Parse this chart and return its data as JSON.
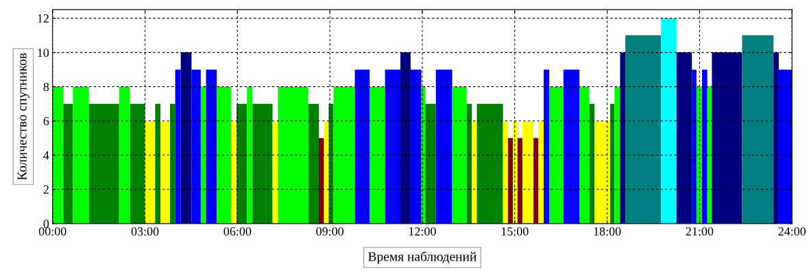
{
  "chart_data": {
    "type": "histogram",
    "xlabel": "Время наблюдений",
    "ylabel": "Количество спутников",
    "bins": [
      0,
      0.35,
      0.66,
      1.18,
      2.16,
      2.51,
      3.0,
      3.33,
      3.5,
      3.81,
      3.98,
      4.16,
      4.51,
      4.81,
      4.98,
      5.33,
      5.79,
      5.97,
      6.31,
      6.49,
      7.14,
      7.31,
      8.3,
      8.64,
      8.81,
      8.96,
      9.12,
      9.81,
      10.29,
      10.79,
      11.29,
      11.62,
      11.97,
      12.1,
      12.44,
      12.97,
      13.44,
      13.61,
      13.77,
      14.62,
      14.78,
      14.94,
      15.09,
      15.25,
      15.61,
      15.77,
      15.94,
      16.12,
      16.58,
      17.1,
      17.42,
      17.59,
      18.1,
      18.24,
      18.42,
      18.59,
      19.75,
      20.25,
      20.75,
      20.9,
      21.08,
      21.25,
      21.4,
      22.38,
      23.4,
      23.57,
      24
    ],
    "values": [
      8,
      7,
      8,
      7,
      8,
      7,
      6,
      7,
      6,
      7,
      9,
      10,
      9,
      8,
      9,
      8,
      6,
      7,
      8,
      7,
      6,
      8,
      7,
      5,
      6,
      7,
      8,
      9,
      8,
      9,
      10,
      9,
      8,
      7,
      9,
      8,
      7,
      6,
      7,
      6,
      5,
      6,
      5,
      6,
      5,
      6,
      9,
      8,
      9,
      8,
      7,
      6,
      7,
      8,
      10,
      11,
      12,
      10,
      9,
      8,
      9,
      8,
      10,
      11,
      10,
      9
    ],
    "colors": [
      "#00ff00",
      "#008000",
      "#00ff00",
      "#008000",
      "#00ff00",
      "#008000",
      "#ffff00",
      "#008000",
      "#ffff00",
      "#008000",
      "#0000ff",
      "#000080",
      "#0000ff",
      "#00ff00",
      "#0000ff",
      "#00ff00",
      "#ffff00",
      "#008000",
      "#00ff00",
      "#008000",
      "#ffff00",
      "#00ff00",
      "#008000",
      "#800000",
      "#ffff00",
      "#008000",
      "#00ff00",
      "#0000ff",
      "#00ff00",
      "#0000ff",
      "#000080",
      "#0000ff",
      "#00ff00",
      "#008000",
      "#0000ff",
      "#00ff00",
      "#008000",
      "#ffff00",
      "#008000",
      "#ffff00",
      "#800000",
      "#ffff00",
      "#800000",
      "#ffff00",
      "#800000",
      "#ffff00",
      "#0000ff",
      "#00ff00",
      "#0000ff",
      "#00ff00",
      "#008000",
      "#ffff00",
      "#008000",
      "#00ff00",
      "#000080",
      "#008080",
      "#00ffff",
      "#000080",
      "#0000ff",
      "#00ff00",
      "#0000ff",
      "#00ff00",
      "#000080",
      "#008080",
      "#000080",
      "#0000ff"
    ],
    "xlim": [
      0,
      24
    ],
    "xticks": [
      {
        "value": 0,
        "label": "00:00"
      },
      {
        "value": 3,
        "label": "03:00"
      },
      {
        "value": 6,
        "label": "06:00"
      },
      {
        "value": 9,
        "label": "09:00"
      },
      {
        "value": 12,
        "label": "12:00"
      },
      {
        "value": 15,
        "label": "15:00"
      },
      {
        "value": 18,
        "label": "18:00"
      },
      {
        "value": 21,
        "label": "21:00"
      },
      {
        "value": 24,
        "label": "24:00"
      }
    ],
    "ylim": [
      0,
      12.5
    ],
    "yticks": [
      0,
      2,
      4,
      6,
      8,
      10,
      12
    ],
    "grid": true
  }
}
